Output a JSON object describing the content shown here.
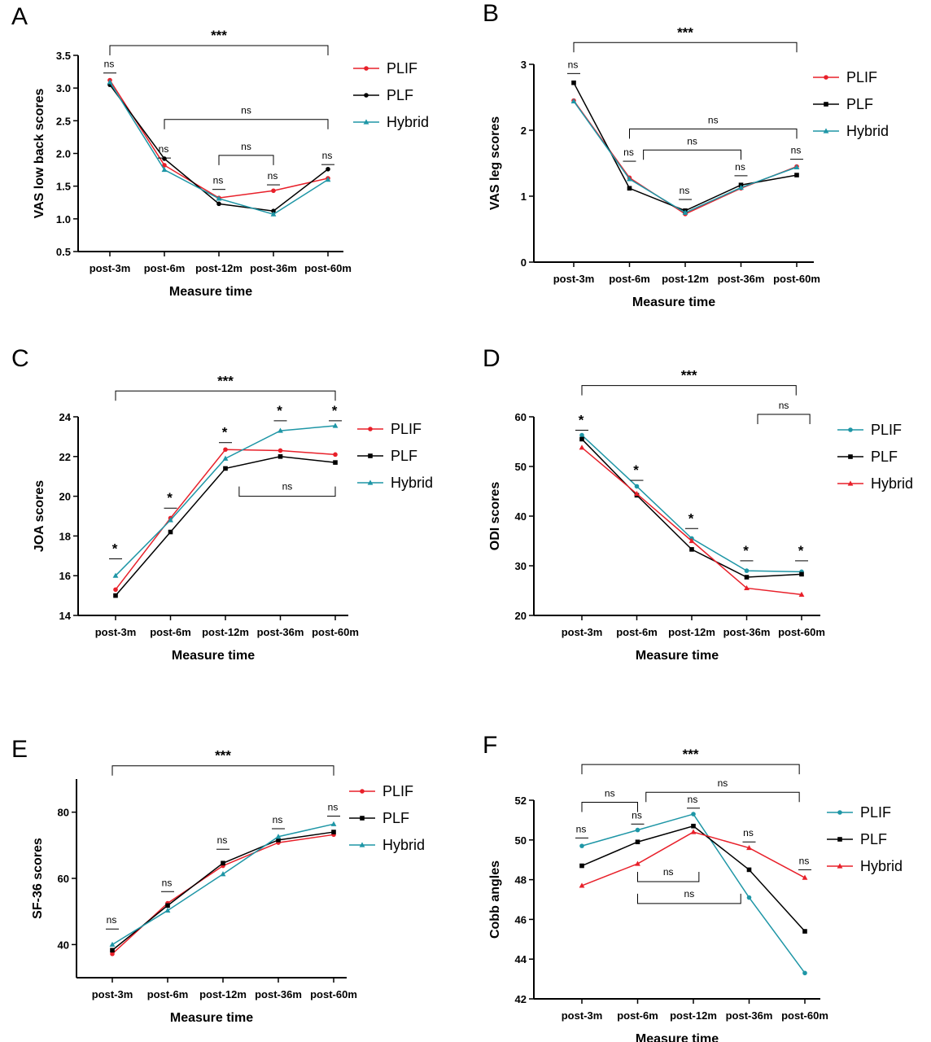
{
  "chart_data": [
    {
      "type": "line",
      "panel_label": "A",
      "categories": [
        "post-3m",
        "post-6m",
        "post-12m",
        "post-36m",
        "post-60m"
      ],
      "xlabel": "Measure time",
      "ylabel": "VAS low back scores",
      "ylim": [
        0.5,
        3.5
      ],
      "yticks": [
        "0.5",
        "1.0",
        "1.5",
        "2.0",
        "2.5",
        "3.0",
        "3.5"
      ],
      "series": [
        {
          "name": "PLIF",
          "color": "#e8202a",
          "marker": "circle",
          "values": [
            3.12,
            1.82,
            1.32,
            1.43,
            1.62
          ]
        },
        {
          "name": "PLF",
          "color": "#000000",
          "marker": "circle",
          "values": [
            3.05,
            1.92,
            1.23,
            1.12,
            1.76
          ]
        },
        {
          "name": "Hybrid",
          "color": "#1e96a6",
          "marker": "triangle",
          "values": [
            3.09,
            1.75,
            1.31,
            1.07,
            1.6
          ]
        }
      ],
      "legend_position": "right",
      "annotations": [
        {
          "type": "bracket",
          "from": 0,
          "to": 4,
          "text": "***",
          "level": 3.65,
          "bold": true
        },
        {
          "type": "bracket",
          "from": 1,
          "to": 4,
          "text": "ns",
          "level": 2.52,
          "bold": false
        },
        {
          "type": "bracket",
          "from": 2,
          "to": 3,
          "text": "ns",
          "level": 1.97,
          "bold": false
        },
        {
          "type": "bar",
          "at": 0,
          "text": "ns",
          "level": 3.23,
          "bold": false
        },
        {
          "type": "bar",
          "at": 1,
          "text": "ns",
          "level": 1.93,
          "bold": false
        },
        {
          "type": "bar",
          "at": 2,
          "text": "ns",
          "level": 1.45,
          "bold": false
        },
        {
          "type": "bar",
          "at": 3,
          "text": "ns",
          "level": 1.52,
          "bold": false
        },
        {
          "type": "bar",
          "at": 4,
          "text": "ns",
          "level": 1.83,
          "bold": false
        }
      ]
    },
    {
      "type": "line",
      "panel_label": "B",
      "categories": [
        "post-3m",
        "post-6m",
        "post-12m",
        "post-36m",
        "post-60m"
      ],
      "xlabel": "Measure time",
      "ylabel": "VAS leg scores",
      "ylim": [
        0,
        3
      ],
      "yticks": [
        "0",
        "1",
        "2",
        "3"
      ],
      "series": [
        {
          "name": "PLIF",
          "color": "#e8202a",
          "marker": "circle",
          "values": [
            2.45,
            1.28,
            0.73,
            1.12,
            1.45
          ]
        },
        {
          "name": "PLF",
          "color": "#000000",
          "marker": "square",
          "values": [
            2.72,
            1.12,
            0.78,
            1.17,
            1.32
          ]
        },
        {
          "name": "Hybrid",
          "color": "#1e96a6",
          "marker": "triangle",
          "values": [
            2.44,
            1.26,
            0.75,
            1.13,
            1.44
          ]
        }
      ],
      "legend_position": "right",
      "annotations": [
        {
          "type": "bracket",
          "from": 0,
          "to": 4,
          "text": "***",
          "level": 3.33,
          "bold": true
        },
        {
          "type": "bracket",
          "from": 1,
          "to": 4,
          "text": "ns",
          "level": 2.02,
          "bold": false
        },
        {
          "type": "bracket",
          "from": 1.25,
          "to": 3,
          "text": "ns",
          "level": 1.7,
          "bold": false
        },
        {
          "type": "bar",
          "at": 0,
          "text": "ns",
          "level": 2.86,
          "bold": false
        },
        {
          "type": "bar",
          "at": 1,
          "text": "ns",
          "level": 1.53,
          "bold": false
        },
        {
          "type": "bar",
          "at": 2,
          "text": "ns",
          "level": 0.95,
          "bold": false
        },
        {
          "type": "bar",
          "at": 3,
          "text": "ns",
          "level": 1.31,
          "bold": false
        },
        {
          "type": "bar",
          "at": 4,
          "text": "ns",
          "level": 1.56,
          "bold": false
        }
      ]
    },
    {
      "type": "line",
      "panel_label": "C",
      "categories": [
        "post-3m",
        "post-6m",
        "post-12m",
        "post-36m",
        "post-60m"
      ],
      "xlabel": "Measure time",
      "ylabel": "JOA scores",
      "ylim": [
        14,
        24
      ],
      "yticks": [
        "14",
        "16",
        "18",
        "20",
        "22",
        "24"
      ],
      "series": [
        {
          "name": "PLIF",
          "color": "#e8202a",
          "marker": "circle",
          "values": [
            15.3,
            18.9,
            22.35,
            22.3,
            22.1
          ]
        },
        {
          "name": "PLF",
          "color": "#000000",
          "marker": "square",
          "values": [
            15.0,
            18.2,
            21.4,
            22.0,
            21.7
          ]
        },
        {
          "name": "Hybrid",
          "color": "#1e96a6",
          "marker": "triangle",
          "values": [
            16.0,
            18.8,
            21.9,
            23.3,
            23.55
          ]
        }
      ],
      "legend_position": "right",
      "annotations": [
        {
          "type": "bracket",
          "from": 0,
          "to": 4,
          "text": "***",
          "level": 25.3,
          "bold": true
        },
        {
          "type": "bracket_down",
          "from": 2.25,
          "to": 4,
          "text": "ns",
          "level": 20.0,
          "bold": false
        },
        {
          "type": "bar",
          "at": 0,
          "text": "*",
          "level": 16.85,
          "bold": true
        },
        {
          "type": "bar",
          "at": 1,
          "text": "*",
          "level": 19.4,
          "bold": true
        },
        {
          "type": "bar",
          "at": 2,
          "text": "*",
          "level": 22.7,
          "bold": true
        },
        {
          "type": "bar",
          "at": 3,
          "text": "*",
          "level": 23.8,
          "bold": true
        },
        {
          "type": "bar",
          "at": 4,
          "text": "*",
          "level": 23.8,
          "bold": true
        }
      ]
    },
    {
      "type": "line",
      "panel_label": "D",
      "categories": [
        "post-3m",
        "post-6m",
        "post-12m",
        "post-36m",
        "post-60m"
      ],
      "xlabel": "Measure time",
      "ylabel": "ODI scores",
      "ylim": [
        20,
        60
      ],
      "yticks": [
        "20",
        "30",
        "40",
        "50",
        "60"
      ],
      "series": [
        {
          "name": "PLIF",
          "color": "#1e96a6",
          "marker": "circle",
          "values": [
            56.3,
            46.0,
            35.5,
            29.0,
            28.8
          ]
        },
        {
          "name": "PLF",
          "color": "#000000",
          "marker": "square",
          "values": [
            55.5,
            44.2,
            33.3,
            27.7,
            28.3
          ]
        },
        {
          "name": "Hybrid",
          "color": "#e8202a",
          "marker": "triangle",
          "values": [
            53.8,
            44.5,
            35.0,
            25.5,
            24.2
          ]
        }
      ],
      "legend_position": "right",
      "annotations": [
        {
          "type": "bracket",
          "from": 0,
          "to": 3.9,
          "text": "***",
          "level": 66.3,
          "bold": true
        },
        {
          "type": "bracket",
          "from": 3.2,
          "to": 4.15,
          "text": "ns",
          "level": 60.5,
          "bold": false
        },
        {
          "type": "bar",
          "at": 0,
          "text": "*",
          "level": 57.3,
          "bold": true
        },
        {
          "type": "bar",
          "at": 1,
          "text": "*",
          "level": 47.2,
          "bold": true
        },
        {
          "type": "bar",
          "at": 2,
          "text": "*",
          "level": 37.5,
          "bold": true
        },
        {
          "type": "bar",
          "at": 3,
          "text": "*",
          "level": 31.0,
          "bold": true
        },
        {
          "type": "bar",
          "at": 4,
          "text": "*",
          "level": 31.0,
          "bold": true
        }
      ]
    },
    {
      "type": "line",
      "panel_label": "E",
      "categories": [
        "post-3m",
        "post-6m",
        "post-12m",
        "post-36m",
        "post-60m"
      ],
      "xlabel": "Measure time",
      "ylabel": "SF-36 scores",
      "ylim": [
        30,
        90
      ],
      "yticks": [
        "40",
        "60",
        "80"
      ],
      "series": [
        {
          "name": "PLIF",
          "color": "#e8202a",
          "marker": "circle",
          "values": [
            37.2,
            52.5,
            63.8,
            70.8,
            73.2
          ]
        },
        {
          "name": "PLF",
          "color": "#000000",
          "marker": "square",
          "values": [
            38.3,
            51.8,
            64.6,
            71.6,
            74.0
          ]
        },
        {
          "name": "Hybrid",
          "color": "#1e96a6",
          "marker": "triangle",
          "values": [
            40.0,
            50.3,
            61.3,
            72.6,
            76.4
          ]
        }
      ],
      "legend_position": "right",
      "annotations": [
        {
          "type": "bracket",
          "from": 0,
          "to": 4,
          "text": "***",
          "level": 94.0,
          "bold": true
        },
        {
          "type": "bar",
          "at": 0,
          "text": "ns",
          "level": 44.7,
          "bold": false
        },
        {
          "type": "bar",
          "at": 1,
          "text": "ns",
          "level": 56.0,
          "bold": false
        },
        {
          "type": "bar",
          "at": 2,
          "text": "ns",
          "level": 68.8,
          "bold": false
        },
        {
          "type": "bar",
          "at": 3,
          "text": "ns",
          "level": 75.0,
          "bold": false
        },
        {
          "type": "bar",
          "at": 4,
          "text": "ns",
          "level": 78.8,
          "bold": false
        }
      ]
    },
    {
      "type": "line",
      "panel_label": "F",
      "categories": [
        "post-3m",
        "post-6m",
        "post-12m",
        "post-36m",
        "post-60m"
      ],
      "xlabel": "Measure time",
      "ylabel": "Cobb angles",
      "ylim": [
        42,
        52
      ],
      "yticks": [
        "42",
        "44",
        "46",
        "48",
        "50",
        "52"
      ],
      "series": [
        {
          "name": "PLIF",
          "color": "#1e96a6",
          "marker": "circle",
          "values": [
            49.7,
            50.5,
            51.3,
            47.1,
            43.3
          ]
        },
        {
          "name": "PLF",
          "color": "#000000",
          "marker": "square",
          "values": [
            48.7,
            49.9,
            50.7,
            48.5,
            45.4
          ]
        },
        {
          "name": "Hybrid",
          "color": "#e8202a",
          "marker": "triangle",
          "values": [
            47.7,
            48.8,
            50.4,
            49.6,
            48.1
          ]
        }
      ],
      "legend_position": "right",
      "annotations": [
        {
          "type": "bracket",
          "from": 0,
          "to": 3.9,
          "text": "***",
          "level": 53.8,
          "bold": true
        },
        {
          "type": "bracket",
          "from": 0,
          "to": 1,
          "text": "ns",
          "level": 51.9,
          "bold": false
        },
        {
          "type": "bracket",
          "from": 1.15,
          "to": 3.9,
          "text": "ns",
          "level": 52.4,
          "bold": false
        },
        {
          "type": "bracket_down",
          "from": 1,
          "to": 2.1,
          "text": "ns",
          "level": 47.9,
          "bold": false
        },
        {
          "type": "bracket_down",
          "from": 1,
          "to": 2.85,
          "text": "ns",
          "level": 46.8,
          "bold": false
        },
        {
          "type": "bar",
          "at": 0,
          "text": "ns",
          "level": 50.1,
          "bold": false
        },
        {
          "type": "bar",
          "at": 1,
          "text": "ns",
          "level": 50.8,
          "bold": false
        },
        {
          "type": "bar",
          "at": 2,
          "text": "ns",
          "level": 51.6,
          "bold": false
        },
        {
          "type": "bar",
          "at": 3,
          "text": "ns",
          "level": 49.9,
          "bold": false
        },
        {
          "type": "bar",
          "at": 4,
          "text": "ns",
          "level": 48.5,
          "bold": false
        }
      ]
    }
  ]
}
